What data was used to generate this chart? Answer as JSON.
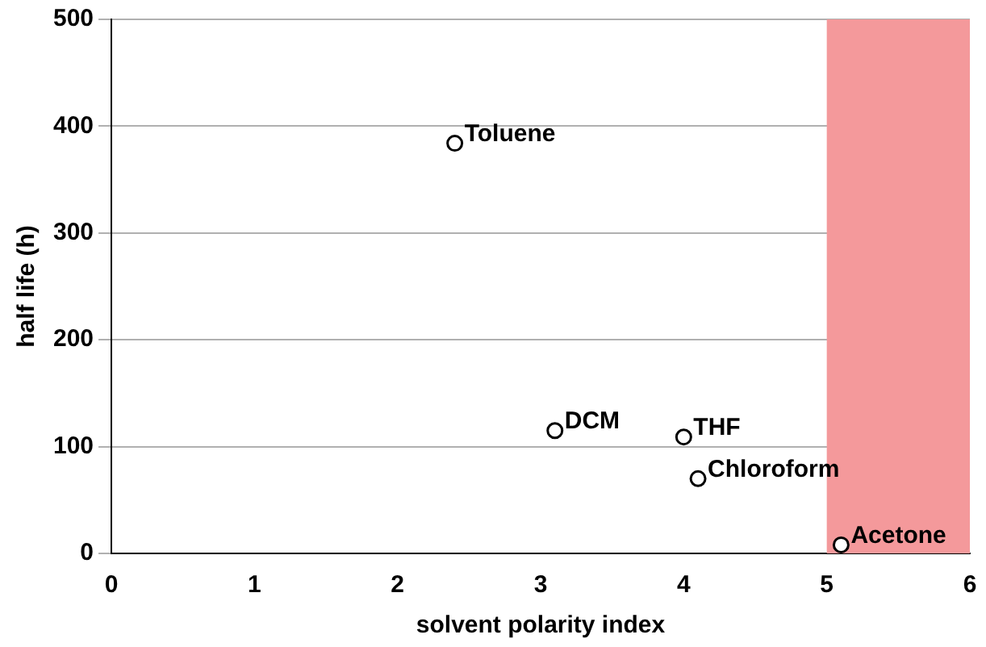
{
  "chart_data": {
    "type": "scatter",
    "xlabel": "solvent polarity index",
    "ylabel": "half life (h)",
    "xlim": [
      0,
      6
    ],
    "xticks": [
      0,
      1,
      2,
      3,
      4,
      5,
      6
    ],
    "ylim": [
      0,
      500
    ],
    "yticks": [
      0,
      100,
      200,
      300,
      400,
      500
    ],
    "grid": "y",
    "legend": false,
    "marker": "circle",
    "series": [
      {
        "color": "#000000",
        "x": [
          2.4,
          3.1,
          4.0,
          4.1,
          5.1
        ],
        "values": [
          384,
          115,
          109,
          70,
          8
        ]
      }
    ],
    "bands": [
      {
        "axis": "x",
        "from": 5,
        "to": 6,
        "color": "#f4999b"
      }
    ],
    "annotations": [
      {
        "text": "Toluene",
        "x": 2.4,
        "y": 384
      },
      {
        "text": "DCM",
        "x": 3.1,
        "y": 115
      },
      {
        "text": "THF",
        "x": 4.0,
        "y": 109
      },
      {
        "text": "Chloroform",
        "x": 4.1,
        "y": 70
      },
      {
        "text": "Acetone",
        "x": 5.1,
        "y": 8
      }
    ]
  }
}
